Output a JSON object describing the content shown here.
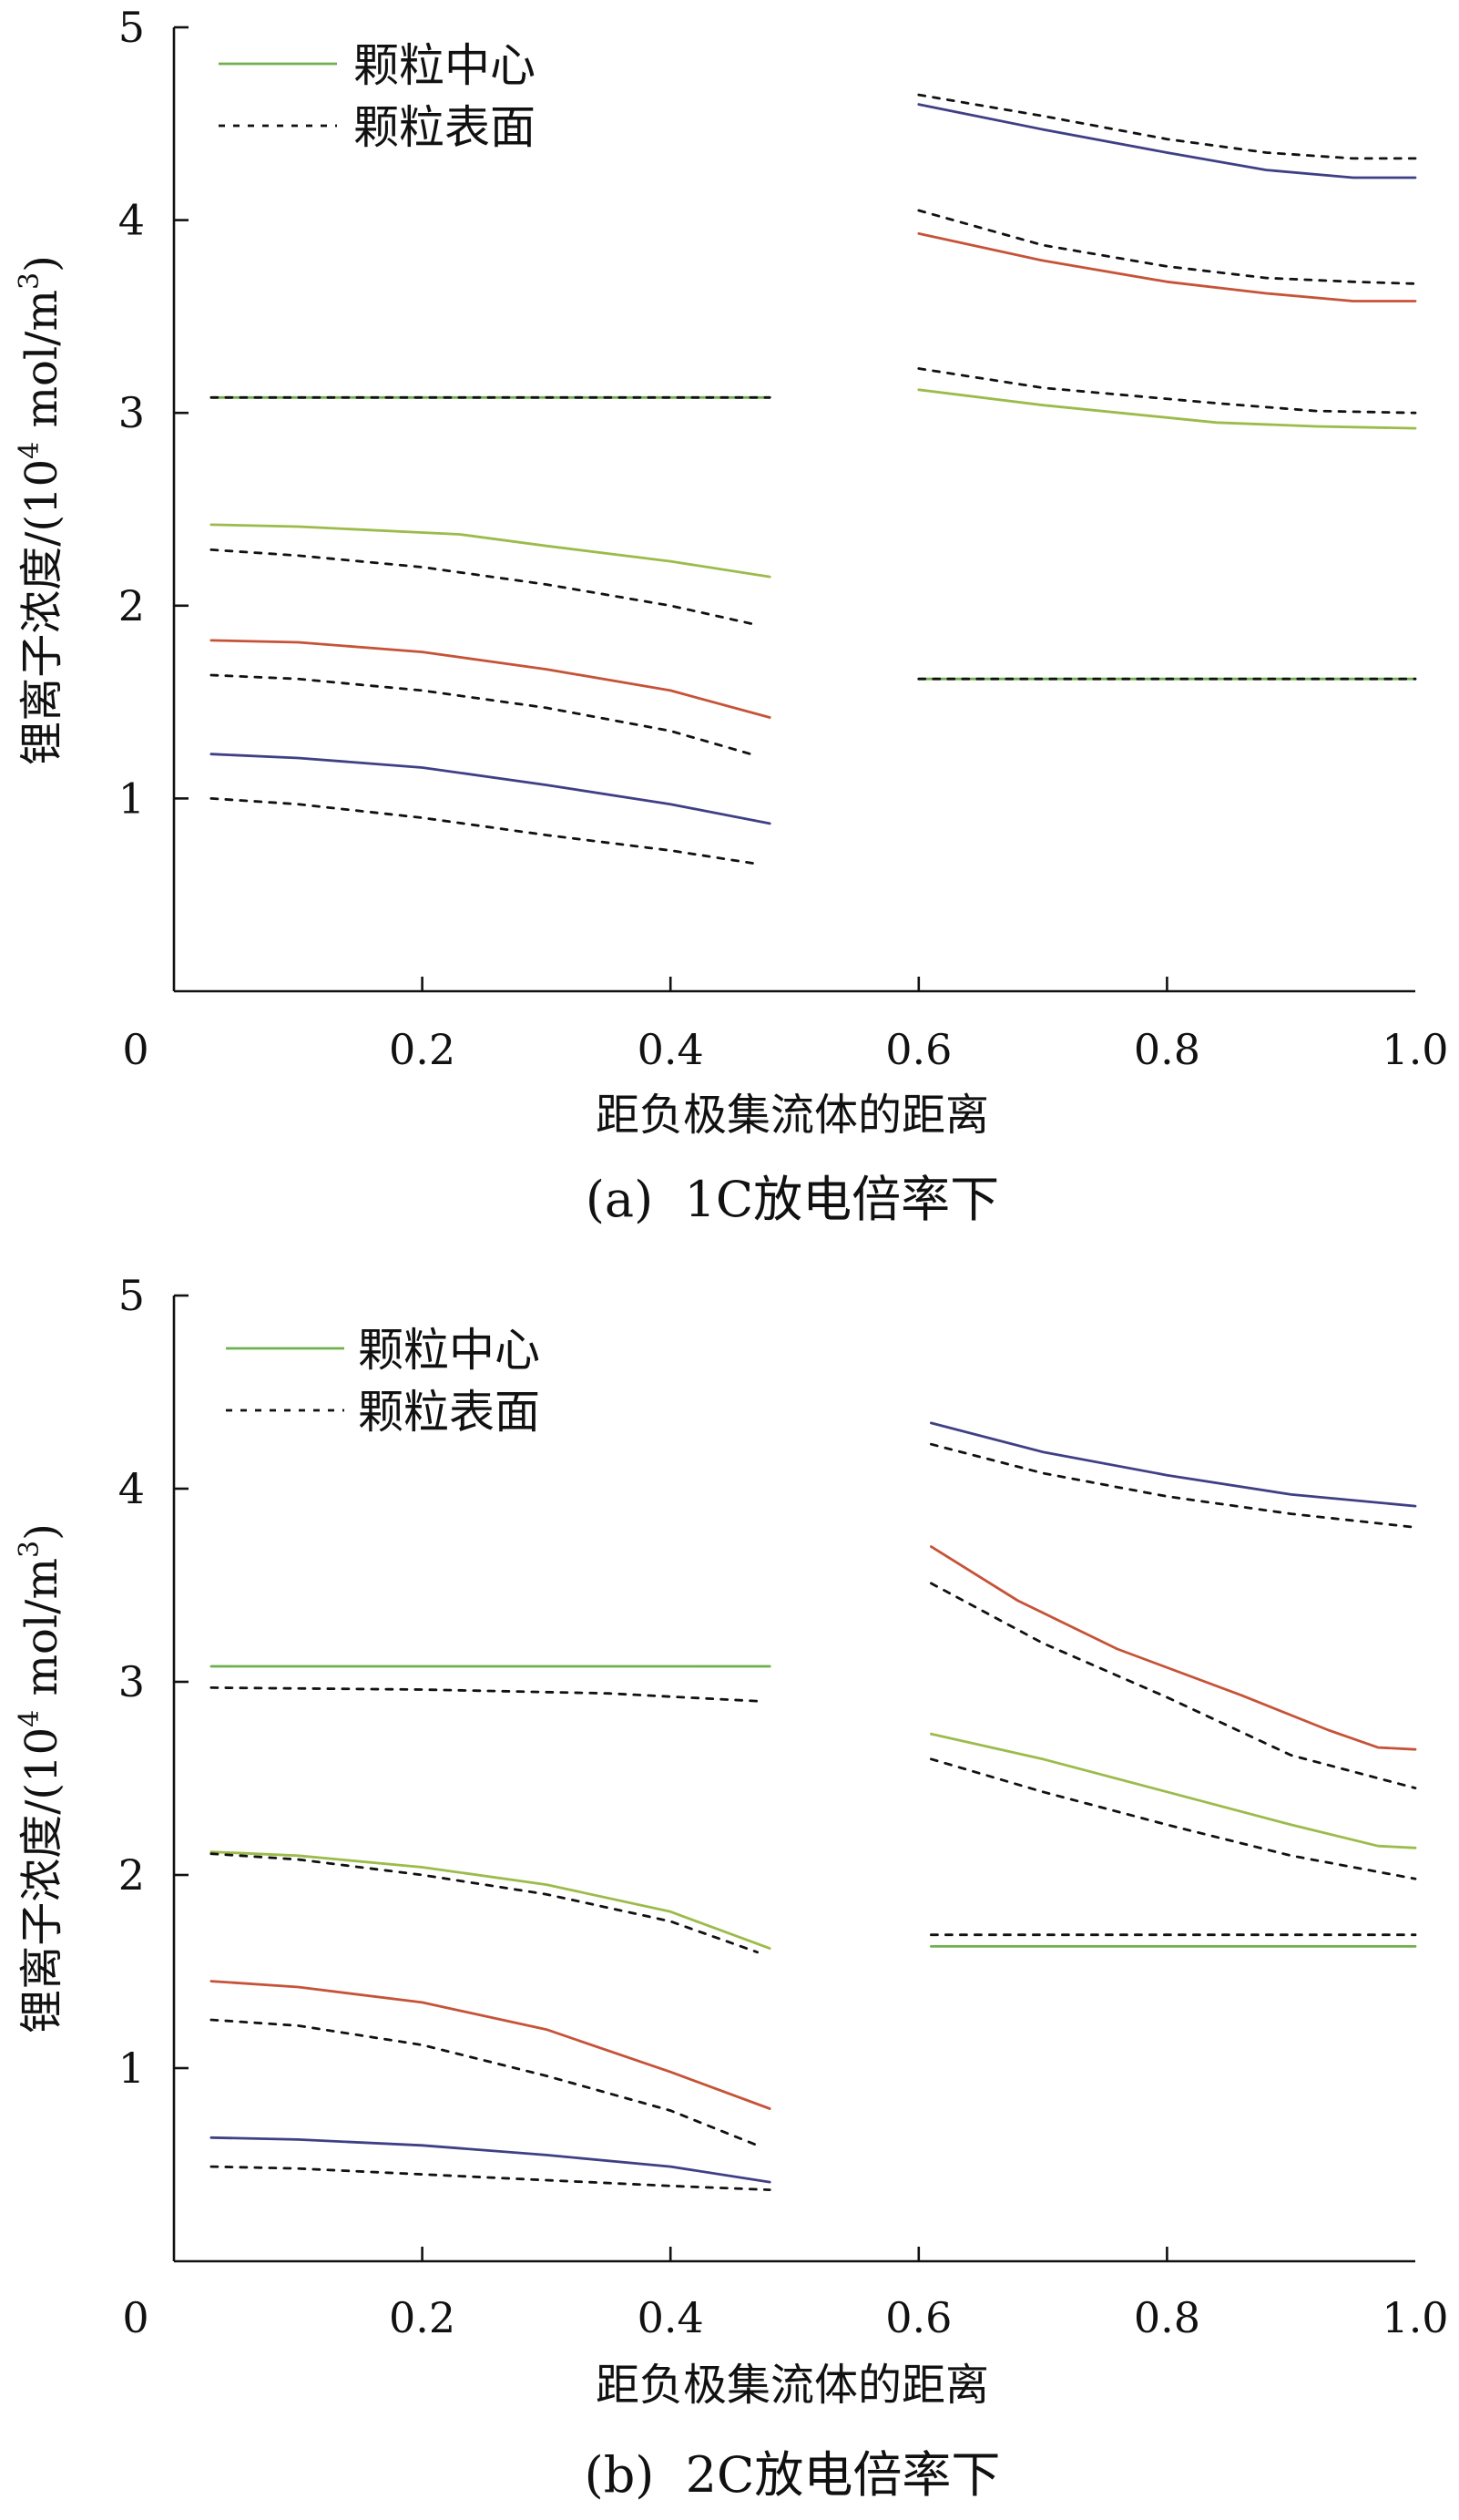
{
  "chart_data": [
    {
      "type": "line",
      "id": "panel-a",
      "caption": "(a)  1C放电倍率下",
      "xlabel": "距负极集流体的距离",
      "ylabel_main": "锂离子浓度/(10",
      "ylabel_sup1": "4",
      "ylabel_mid": " mol/m",
      "ylabel_sup2": "3",
      "ylabel_end": ")",
      "xlim": [
        0,
        1.0
      ],
      "ylim": [
        0,
        5
      ],
      "xticks": [
        0,
        0.2,
        0.4,
        0.6,
        0.8,
        1.0
      ],
      "xtick_labels": [
        "0",
        "0.2",
        "0.4",
        "0.6",
        "0.8",
        "1.0"
      ],
      "yticks": [
        1,
        2,
        3,
        4,
        5
      ],
      "ytick_labels": [
        "1",
        "2",
        "3",
        "4",
        "5"
      ],
      "legend": {
        "position": "top-left",
        "entries": [
          {
            "label": "颗粒中心",
            "style": "solid",
            "color": "#6fb04e"
          },
          {
            "label": "颗粒表面",
            "style": "dotted",
            "color": "#111111"
          }
        ]
      },
      "series": [
        {
          "color": "#6fb04e",
          "style": "solid",
          "x": [
            0.03,
            0.48
          ],
          "y": [
            3.08,
            3.08
          ]
        },
        {
          "color": "#111111",
          "style": "dotted",
          "x": [
            0.03,
            0.48
          ],
          "y": [
            3.08,
            3.08
          ]
        },
        {
          "color": "#9cbb4a",
          "style": "solid",
          "x": [
            0.03,
            0.1,
            0.23,
            0.3,
            0.4,
            0.48
          ],
          "y": [
            2.42,
            2.41,
            2.37,
            2.31,
            2.23,
            2.15
          ]
        },
        {
          "color": "#111111",
          "style": "dotted",
          "x": [
            0.03,
            0.1,
            0.2,
            0.3,
            0.4,
            0.47
          ],
          "y": [
            2.29,
            2.26,
            2.2,
            2.11,
            2.0,
            1.9
          ]
        },
        {
          "color": "#c65338",
          "style": "solid",
          "x": [
            0.03,
            0.1,
            0.2,
            0.3,
            0.4,
            0.48
          ],
          "y": [
            1.82,
            1.81,
            1.76,
            1.67,
            1.56,
            1.42
          ]
        },
        {
          "color": "#111111",
          "style": "dotted",
          "x": [
            0.03,
            0.1,
            0.2,
            0.3,
            0.4,
            0.47
          ],
          "y": [
            1.64,
            1.62,
            1.56,
            1.47,
            1.35,
            1.22
          ]
        },
        {
          "color": "#3f3f86",
          "style": "solid",
          "x": [
            0.03,
            0.1,
            0.2,
            0.3,
            0.4,
            0.48
          ],
          "y": [
            1.23,
            1.21,
            1.16,
            1.07,
            0.97,
            0.87
          ]
        },
        {
          "color": "#111111",
          "style": "dotted",
          "x": [
            0.03,
            0.1,
            0.2,
            0.3,
            0.4,
            0.47
          ],
          "y": [
            1.0,
            0.97,
            0.9,
            0.81,
            0.73,
            0.66
          ]
        },
        {
          "color": "#3f3f86",
          "style": "solid",
          "x": [
            0.6,
            0.7,
            0.8,
            0.88,
            0.95,
            1.0
          ],
          "y": [
            4.6,
            4.47,
            4.35,
            4.26,
            4.22,
            4.22
          ]
        },
        {
          "color": "#111111",
          "style": "dotted",
          "x": [
            0.6,
            0.7,
            0.8,
            0.88,
            0.95,
            1.0
          ],
          "y": [
            4.65,
            4.54,
            4.42,
            4.35,
            4.32,
            4.32
          ]
        },
        {
          "color": "#c65338",
          "style": "solid",
          "x": [
            0.6,
            0.7,
            0.8,
            0.88,
            0.95,
            1.0
          ],
          "y": [
            3.93,
            3.79,
            3.68,
            3.62,
            3.58,
            3.58
          ]
        },
        {
          "color": "#111111",
          "style": "dotted",
          "x": [
            0.6,
            0.7,
            0.8,
            0.88,
            0.95,
            1.0
          ],
          "y": [
            4.05,
            3.87,
            3.76,
            3.7,
            3.68,
            3.67
          ]
        },
        {
          "color": "#9cbb4a",
          "style": "solid",
          "x": [
            0.6,
            0.7,
            0.84,
            0.92,
            1.0
          ],
          "y": [
            3.12,
            3.04,
            2.95,
            2.93,
            2.92
          ]
        },
        {
          "color": "#111111",
          "style": "dotted",
          "x": [
            0.6,
            0.7,
            0.84,
            0.92,
            1.0
          ],
          "y": [
            3.23,
            3.13,
            3.05,
            3.01,
            3.0
          ]
        },
        {
          "color": "#6fb04e",
          "style": "solid",
          "x": [
            0.6,
            1.0
          ],
          "y": [
            1.62,
            1.62
          ]
        },
        {
          "color": "#111111",
          "style": "dotted",
          "x": [
            0.6,
            1.0
          ],
          "y": [
            1.62,
            1.62
          ]
        }
      ]
    },
    {
      "type": "line",
      "id": "panel-b",
      "caption": "(b)  2C放电倍率下",
      "xlabel": "距负极集流体的距离",
      "ylabel_main": "锂离子浓度/(10",
      "ylabel_sup1": "4",
      "ylabel_mid": " mol/m",
      "ylabel_sup2": "3",
      "ylabel_end": ")",
      "xlim": [
        0,
        1.0
      ],
      "ylim": [
        0,
        5
      ],
      "xticks": [
        0,
        0.2,
        0.4,
        0.6,
        0.8,
        1.0
      ],
      "xtick_labels": [
        "0",
        "0.2",
        "0.4",
        "0.6",
        "0.8",
        "1.0"
      ],
      "yticks": [
        1,
        2,
        3,
        4,
        5
      ],
      "ytick_labels": [
        "1",
        "2",
        "3",
        "4",
        "5"
      ],
      "legend": {
        "position": "top-left",
        "entries": [
          {
            "label": "颗粒中心",
            "style": "solid",
            "color": "#6fb04e"
          },
          {
            "label": "颗粒表面",
            "style": "dotted",
            "color": "#111111"
          }
        ]
      },
      "series": [
        {
          "color": "#6fb04e",
          "style": "solid",
          "x": [
            0.03,
            0.48
          ],
          "y": [
            3.08,
            3.08
          ]
        },
        {
          "color": "#111111",
          "style": "dotted",
          "x": [
            0.03,
            0.2,
            0.35,
            0.47
          ],
          "y": [
            2.97,
            2.96,
            2.94,
            2.9
          ]
        },
        {
          "color": "#9cbb4a",
          "style": "solid",
          "x": [
            0.03,
            0.1,
            0.2,
            0.3,
            0.4,
            0.48
          ],
          "y": [
            2.12,
            2.1,
            2.04,
            1.95,
            1.81,
            1.62
          ]
        },
        {
          "color": "#111111",
          "style": "dotted",
          "x": [
            0.03,
            0.1,
            0.2,
            0.3,
            0.4,
            0.47
          ],
          "y": [
            2.11,
            2.08,
            2.0,
            1.9,
            1.76,
            1.6
          ]
        },
        {
          "color": "#c65338",
          "style": "solid",
          "x": [
            0.03,
            0.1,
            0.2,
            0.3,
            0.4,
            0.48
          ],
          "y": [
            1.45,
            1.42,
            1.34,
            1.2,
            0.98,
            0.79
          ]
        },
        {
          "color": "#111111",
          "style": "dotted",
          "x": [
            0.03,
            0.1,
            0.2,
            0.3,
            0.4,
            0.47
          ],
          "y": [
            1.25,
            1.22,
            1.12,
            0.96,
            0.78,
            0.6
          ]
        },
        {
          "color": "#3f3f86",
          "style": "solid",
          "x": [
            0.03,
            0.1,
            0.2,
            0.3,
            0.4,
            0.48
          ],
          "y": [
            0.64,
            0.63,
            0.6,
            0.55,
            0.49,
            0.41
          ]
        },
        {
          "color": "#111111",
          "style": "dotted",
          "x": [
            0.03,
            0.1,
            0.2,
            0.3,
            0.4,
            0.48
          ],
          "y": [
            0.49,
            0.48,
            0.45,
            0.42,
            0.39,
            0.37
          ]
        },
        {
          "color": "#3f3f86",
          "style": "solid",
          "x": [
            0.61,
            0.7,
            0.8,
            0.9,
            1.0
          ],
          "y": [
            4.34,
            4.19,
            4.07,
            3.97,
            3.91
          ]
        },
        {
          "color": "#111111",
          "style": "dotted",
          "x": [
            0.61,
            0.7,
            0.8,
            0.9,
            1.0
          ],
          "y": [
            4.23,
            4.08,
            3.96,
            3.87,
            3.8
          ]
        },
        {
          "color": "#c65338",
          "style": "solid",
          "x": [
            0.61,
            0.68,
            0.76,
            0.86,
            0.93,
            0.97,
            1.0
          ],
          "y": [
            3.7,
            3.42,
            3.17,
            2.93,
            2.75,
            2.66,
            2.65
          ]
        },
        {
          "color": "#111111",
          "style": "dotted",
          "x": [
            0.61,
            0.7,
            0.8,
            0.9,
            1.0
          ],
          "y": [
            3.51,
            3.2,
            2.92,
            2.62,
            2.45
          ]
        },
        {
          "color": "#9cbb4a",
          "style": "solid",
          "x": [
            0.61,
            0.7,
            0.8,
            0.9,
            0.97,
            1.0
          ],
          "y": [
            2.73,
            2.6,
            2.43,
            2.26,
            2.15,
            2.14
          ]
        },
        {
          "color": "#111111",
          "style": "dotted",
          "x": [
            0.61,
            0.7,
            0.8,
            0.9,
            1.0
          ],
          "y": [
            2.6,
            2.43,
            2.26,
            2.1,
            1.98
          ]
        },
        {
          "color": "#6fb04e",
          "style": "solid",
          "x": [
            0.61,
            1.0
          ],
          "y": [
            1.63,
            1.63
          ]
        },
        {
          "color": "#111111",
          "style": "dotted",
          "x": [
            0.61,
            1.0
          ],
          "y": [
            1.69,
            1.69
          ]
        }
      ]
    }
  ]
}
